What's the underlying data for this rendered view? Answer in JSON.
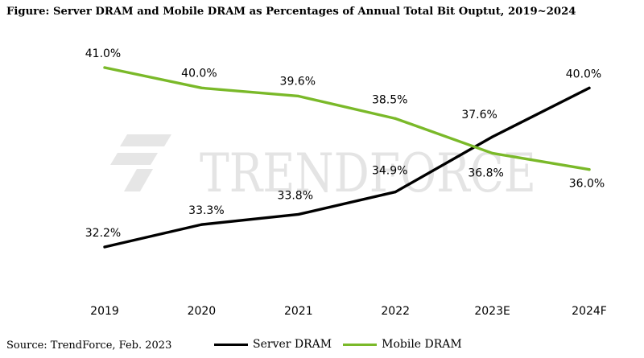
{
  "title": "Figure: Server DRAM and Mobile DRAM as Percentages of Annual Total Bit Ouptut, 2019~2024",
  "source": "Source: TrendForce, Feb.  2023",
  "watermark": "TrendForce",
  "chart_data": {
    "type": "line",
    "categories": [
      "2019",
      "2020",
      "2021",
      "2022",
      "2023E",
      "2024F"
    ],
    "ylim": [
      30,
      42.5
    ],
    "series": [
      {
        "name": "Server DRAM",
        "color": "#000000",
        "values": [
          32.2,
          33.3,
          33.8,
          34.9,
          37.6,
          40.0
        ],
        "labels": [
          "32.2%",
          "33.3%",
          "33.8%",
          "34.9%",
          "37.6%",
          "40.0%"
        ]
      },
      {
        "name": "Mobile DRAM",
        "color": "#7ab929",
        "values": [
          41.0,
          40.0,
          39.6,
          38.5,
          36.8,
          36.0
        ],
        "labels": [
          "41.0%",
          "40.0%",
          "39.6%",
          "38.5%",
          "36.8%",
          "36.0%"
        ]
      }
    ],
    "legend": [
      "Server DRAM",
      "Mobile DRAM"
    ],
    "legend_position": "bottom"
  }
}
